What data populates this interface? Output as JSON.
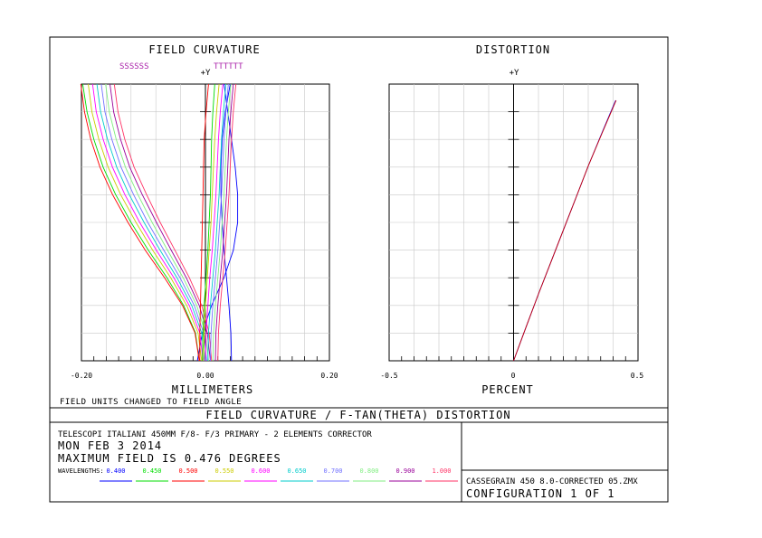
{
  "chart_data": [
    {
      "type": "line",
      "title": "FIELD CURVATURE",
      "legend_labels": [
        "SSSSSS",
        "TTTTTT"
      ],
      "y_axis_label": "+Y",
      "xlabel": "MILLIMETERS",
      "x_ticks": [
        "-0.20",
        "0.00",
        "0.20"
      ],
      "xlim": [
        -0.2,
        0.2
      ],
      "ylim": [
        0,
        0.476
      ],
      "grid": true,
      "sagittal_series": [
        {
          "wavelength": "0.400",
          "color": "#0000ff",
          "x": [
            -0.013,
            -0.005,
            0.01,
            0.03,
            0.045,
            0.052,
            0.052,
            0.048,
            0.042,
            0.036,
            0.03
          ],
          "y": [
            0,
            0.048,
            0.095,
            0.143,
            0.19,
            0.238,
            0.286,
            0.333,
            0.381,
            0.428,
            0.476
          ]
        },
        {
          "wavelength": "0.450",
          "color": "#00dd00",
          "x": [
            -0.01,
            -0.016,
            -0.035,
            -0.062,
            -0.092,
            -0.12,
            -0.145,
            -0.165,
            -0.18,
            -0.191,
            -0.198
          ],
          "y": [
            0,
            0.048,
            0.095,
            0.143,
            0.19,
            0.238,
            0.286,
            0.333,
            0.381,
            0.428,
            0.476
          ]
        },
        {
          "wavelength": "0.500",
          "color": "#ff0000",
          "x": [
            -0.01,
            -0.017,
            -0.037,
            -0.066,
            -0.097,
            -0.125,
            -0.15,
            -0.17,
            -0.185,
            -0.195,
            -0.201
          ],
          "y": [
            0,
            0.048,
            0.095,
            0.143,
            0.19,
            0.238,
            0.286,
            0.333,
            0.381,
            0.428,
            0.476
          ]
        },
        {
          "wavelength": "0.550",
          "color": "#cccc00",
          "x": [
            -0.006,
            -0.012,
            -0.03,
            -0.056,
            -0.085,
            -0.112,
            -0.137,
            -0.157,
            -0.172,
            -0.183,
            -0.189
          ],
          "y": [
            0,
            0.048,
            0.095,
            0.143,
            0.19,
            0.238,
            0.286,
            0.333,
            0.381,
            0.428,
            0.476
          ]
        },
        {
          "wavelength": "0.600",
          "color": "#ff00ff",
          "x": [
            -0.004,
            -0.009,
            -0.026,
            -0.051,
            -0.079,
            -0.106,
            -0.13,
            -0.15,
            -0.165,
            -0.176,
            -0.182
          ],
          "y": [
            0,
            0.048,
            0.095,
            0.143,
            0.19,
            0.238,
            0.286,
            0.333,
            0.381,
            0.428,
            0.476
          ]
        },
        {
          "wavelength": "0.650",
          "color": "#00cccc",
          "x": [
            -0.001,
            -0.006,
            -0.022,
            -0.046,
            -0.073,
            -0.099,
            -0.123,
            -0.143,
            -0.158,
            -0.169,
            -0.175
          ],
          "y": [
            0,
            0.048,
            0.095,
            0.143,
            0.19,
            0.238,
            0.286,
            0.333,
            0.381,
            0.428,
            0.476
          ]
        },
        {
          "wavelength": "0.700",
          "color": "#7070ff",
          "x": [
            0.002,
            -0.003,
            -0.018,
            -0.041,
            -0.067,
            -0.093,
            -0.116,
            -0.136,
            -0.151,
            -0.162,
            -0.168
          ],
          "y": [
            0,
            0.048,
            0.095,
            0.143,
            0.19,
            0.238,
            0.286,
            0.333,
            0.381,
            0.428,
            0.476
          ]
        },
        {
          "wavelength": "0.800",
          "color": "#80ee80",
          "x": [
            0.005,
            0.0,
            -0.014,
            -0.036,
            -0.061,
            -0.086,
            -0.109,
            -0.129,
            -0.144,
            -0.155,
            -0.161
          ],
          "y": [
            0,
            0.048,
            0.095,
            0.143,
            0.19,
            0.238,
            0.286,
            0.333,
            0.381,
            0.428,
            0.476
          ]
        },
        {
          "wavelength": "0.900",
          "color": "#990099",
          "x": [
            0.008,
            0.003,
            -0.01,
            -0.031,
            -0.055,
            -0.079,
            -0.102,
            -0.122,
            -0.137,
            -0.148,
            -0.154
          ],
          "y": [
            0,
            0.048,
            0.095,
            0.143,
            0.19,
            0.238,
            0.286,
            0.333,
            0.381,
            0.428,
            0.476
          ]
        },
        {
          "wavelength": "1.000",
          "color": "#ff3366",
          "x": [
            0.01,
            0.006,
            -0.006,
            -0.026,
            -0.049,
            -0.073,
            -0.095,
            -0.115,
            -0.13,
            -0.141,
            -0.147
          ],
          "y": [
            0,
            0.048,
            0.095,
            0.143,
            0.19,
            0.238,
            0.286,
            0.333,
            0.381,
            0.428,
            0.476
          ]
        }
      ],
      "tangential_series": [
        {
          "wavelength": "0.400",
          "color": "#0000ff",
          "x": [
            0.042,
            0.041,
            0.038,
            0.034,
            0.03,
            0.027,
            0.025,
            0.025,
            0.027,
            0.032,
            0.04
          ],
          "y": [
            0,
            0.048,
            0.095,
            0.143,
            0.19,
            0.238,
            0.286,
            0.333,
            0.381,
            0.428,
            0.476
          ]
        },
        {
          "wavelength": "0.450",
          "color": "#00dd00",
          "x": [
            -0.005,
            -0.004,
            -0.002,
            0.001,
            0.004,
            0.006,
            0.008,
            0.009,
            0.01,
            0.012,
            0.015
          ],
          "y": [
            0,
            0.048,
            0.095,
            0.143,
            0.19,
            0.238,
            0.286,
            0.333,
            0.381,
            0.428,
            0.476
          ]
        },
        {
          "wavelength": "0.500",
          "color": "#ff0000",
          "x": [
            -0.009,
            -0.009,
            -0.008,
            -0.007,
            -0.006,
            -0.005,
            -0.004,
            -0.003,
            -0.002,
            0.001,
            0.005
          ],
          "y": [
            0,
            0.048,
            0.095,
            0.143,
            0.19,
            0.238,
            0.286,
            0.333,
            0.381,
            0.428,
            0.476
          ]
        },
        {
          "wavelength": "0.550",
          "color": "#cccc00",
          "x": [
            -0.003,
            -0.002,
            0.0,
            0.003,
            0.006,
            0.009,
            0.011,
            0.013,
            0.015,
            0.018,
            0.022
          ],
          "y": [
            0,
            0.048,
            0.095,
            0.143,
            0.19,
            0.238,
            0.286,
            0.333,
            0.381,
            0.428,
            0.476
          ]
        },
        {
          "wavelength": "0.600",
          "color": "#ff00ff",
          "x": [
            0.0,
            0.001,
            0.004,
            0.007,
            0.011,
            0.014,
            0.017,
            0.019,
            0.021,
            0.024,
            0.028
          ],
          "y": [
            0,
            0.048,
            0.095,
            0.143,
            0.19,
            0.238,
            0.286,
            0.333,
            0.381,
            0.428,
            0.476
          ]
        },
        {
          "wavelength": "0.650",
          "color": "#00cccc",
          "x": [
            0.004,
            0.005,
            0.008,
            0.012,
            0.016,
            0.019,
            0.022,
            0.024,
            0.026,
            0.029,
            0.033
          ],
          "y": [
            0,
            0.048,
            0.095,
            0.143,
            0.19,
            0.238,
            0.286,
            0.333,
            0.381,
            0.428,
            0.476
          ]
        },
        {
          "wavelength": "0.700",
          "color": "#7070ff",
          "x": [
            0.008,
            0.009,
            0.012,
            0.016,
            0.02,
            0.023,
            0.026,
            0.028,
            0.03,
            0.033,
            0.037
          ],
          "y": [
            0,
            0.048,
            0.095,
            0.143,
            0.19,
            0.238,
            0.286,
            0.333,
            0.381,
            0.428,
            0.476
          ]
        },
        {
          "wavelength": "0.800",
          "color": "#80ee80",
          "x": [
            0.012,
            0.013,
            0.016,
            0.02,
            0.024,
            0.027,
            0.03,
            0.032,
            0.034,
            0.037,
            0.041
          ],
          "y": [
            0,
            0.048,
            0.095,
            0.143,
            0.19,
            0.238,
            0.286,
            0.333,
            0.381,
            0.428,
            0.476
          ]
        },
        {
          "wavelength": "0.900",
          "color": "#990099",
          "x": [
            0.016,
            0.017,
            0.02,
            0.024,
            0.028,
            0.031,
            0.034,
            0.036,
            0.038,
            0.041,
            0.045
          ],
          "y": [
            0,
            0.048,
            0.095,
            0.143,
            0.19,
            0.238,
            0.286,
            0.333,
            0.381,
            0.428,
            0.476
          ]
        },
        {
          "wavelength": "1.000",
          "color": "#ff3366",
          "x": [
            0.02,
            0.021,
            0.024,
            0.028,
            0.032,
            0.035,
            0.038,
            0.04,
            0.042,
            0.045,
            0.049
          ],
          "y": [
            0,
            0.048,
            0.095,
            0.143,
            0.19,
            0.238,
            0.286,
            0.333,
            0.381,
            0.428,
            0.476
          ]
        }
      ]
    },
    {
      "type": "line",
      "title": "DISTORTION",
      "y_axis_label": "+Y",
      "xlabel": "PERCENT",
      "x_ticks": [
        "-0.5",
        "0",
        "0.5"
      ],
      "xlim": [
        -0.5,
        0.5
      ],
      "ylim": [
        0,
        0.476
      ],
      "grid": true,
      "series": [
        {
          "color": "#0000ff",
          "x": [
            0.0,
            0.05,
            0.1,
            0.15,
            0.2,
            0.25,
            0.3,
            0.355,
            0.41
          ],
          "y": [
            0,
            0.058,
            0.115,
            0.17,
            0.225,
            0.28,
            0.335,
            0.392,
            0.448
          ]
        },
        {
          "color": "#cc0000",
          "x": [
            0.0,
            0.05,
            0.1,
            0.15,
            0.2,
            0.25,
            0.3,
            0.356,
            0.412
          ],
          "y": [
            0,
            0.058,
            0.115,
            0.17,
            0.225,
            0.28,
            0.335,
            0.392,
            0.448
          ]
        }
      ]
    }
  ],
  "field_units_note": "FIELD UNITS CHANGED TO FIELD ANGLE",
  "banner": "FIELD CURVATURE / F-TAN(THETA) DISTORTION",
  "info": {
    "line1": "TELESCOPI ITALIANI 450MM F/8- F/3 PRIMARY -  2 ELEMENTS CORRECTOR",
    "line2": "MON FEB 3 2014",
    "line3": "MAXIMUM FIELD IS 0.476 DEGREES",
    "wavelengths_label": "WAVELENGTHS:",
    "wavelengths": [
      {
        "value": "0.400",
        "color": "#0000ff"
      },
      {
        "value": "0.450",
        "color": "#00dd00"
      },
      {
        "value": "0.500",
        "color": "#ff0000"
      },
      {
        "value": "0.550",
        "color": "#cccc00"
      },
      {
        "value": "0.600",
        "color": "#ff00ff"
      },
      {
        "value": "0.650",
        "color": "#00cccc"
      },
      {
        "value": "0.700",
        "color": "#7070ff"
      },
      {
        "value": "0.800",
        "color": "#80ee80"
      },
      {
        "value": "0.900",
        "color": "#990099"
      },
      {
        "value": "1.000",
        "color": "#ff3366"
      }
    ],
    "file_name": "CASSEGRAIN 450 8.0-CORRECTED 05.ZMX",
    "configuration": "CONFIGURATION 1 OF 1"
  }
}
